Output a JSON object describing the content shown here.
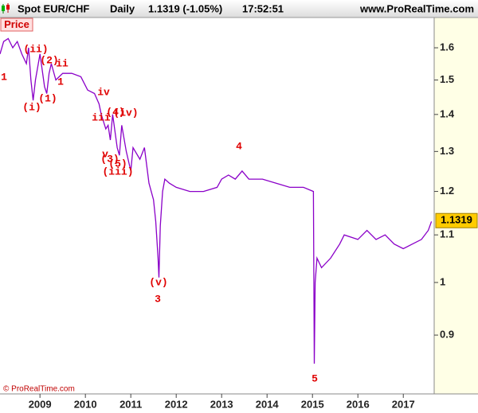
{
  "chart_data": {
    "type": "line",
    "title": "Spot EUR/CHF",
    "period": "Daily",
    "quote": "1.1319 (-1.05%)",
    "time": "17:52:51",
    "site": "www.ProRealTime.com",
    "panel_label": "Price",
    "copyright": "© ProRealTime.com",
    "last_value": 1.1319,
    "log_scale": true,
    "xlim": [
      2008.12,
      2017.68
    ],
    "xticks": [
      2009,
      2010,
      2011,
      2012,
      2013,
      2014,
      2015,
      2016,
      2017
    ],
    "ylim": [
      0.8,
      1.7
    ],
    "yticks": [
      0.9,
      1,
      1.1,
      1.2,
      1.3,
      1.4,
      1.5,
      1.6
    ],
    "series": [
      {
        "color": "#8a00c8",
        "x": [
          2008.12,
          2008.2,
          2008.3,
          2008.4,
          2008.5,
          2008.6,
          2008.7,
          2008.75,
          2008.8,
          2008.85,
          2008.9,
          2009.0,
          2009.1,
          2009.15,
          2009.2,
          2009.25,
          2009.35,
          2009.5,
          2009.7,
          2009.9,
          2010.05,
          2010.2,
          2010.3,
          2010.35,
          2010.45,
          2010.5,
          2010.55,
          2010.6,
          2010.7,
          2010.75,
          2010.8,
          2010.9,
          2011.0,
          2011.05,
          2011.2,
          2011.3,
          2011.4,
          2011.5,
          2011.55,
          2011.6,
          2011.62,
          2011.65,
          2011.7,
          2011.75,
          2011.85,
          2012.0,
          2012.3,
          2012.6,
          2012.9,
          2013.0,
          2013.15,
          2013.3,
          2013.45,
          2013.6,
          2013.9,
          2014.2,
          2014.5,
          2014.8,
          2015.02,
          2015.04,
          2015.06,
          2015.1,
          2015.2,
          2015.4,
          2015.6,
          2015.7,
          2016.0,
          2016.2,
          2016.4,
          2016.6,
          2016.8,
          2017.0,
          2017.2,
          2017.4,
          2017.55,
          2017.62
        ],
        "values": [
          1.58,
          1.62,
          1.63,
          1.6,
          1.62,
          1.58,
          1.55,
          1.6,
          1.5,
          1.44,
          1.5,
          1.58,
          1.48,
          1.46,
          1.52,
          1.55,
          1.5,
          1.52,
          1.52,
          1.51,
          1.47,
          1.46,
          1.43,
          1.4,
          1.36,
          1.37,
          1.33,
          1.4,
          1.31,
          1.29,
          1.37,
          1.3,
          1.25,
          1.31,
          1.28,
          1.31,
          1.22,
          1.18,
          1.13,
          1.05,
          1.01,
          1.12,
          1.2,
          1.23,
          1.22,
          1.21,
          1.2,
          1.2,
          1.21,
          1.23,
          1.24,
          1.23,
          1.25,
          1.23,
          1.23,
          1.22,
          1.21,
          1.21,
          1.2,
          0.85,
          1.0,
          1.05,
          1.03,
          1.05,
          1.08,
          1.1,
          1.09,
          1.11,
          1.09,
          1.1,
          1.08,
          1.07,
          1.08,
          1.09,
          1.11,
          1.13
        ]
      }
    ],
    "annotations": [
      "1",
      "(ii)",
      "(2)",
      "ii",
      "1",
      "(i)",
      "(1)",
      "iv",
      "iii",
      "(4)",
      "(iv)",
      "v",
      "(3)",
      "(5)",
      "(iii)",
      "4",
      "(v)",
      "3",
      "5"
    ]
  }
}
